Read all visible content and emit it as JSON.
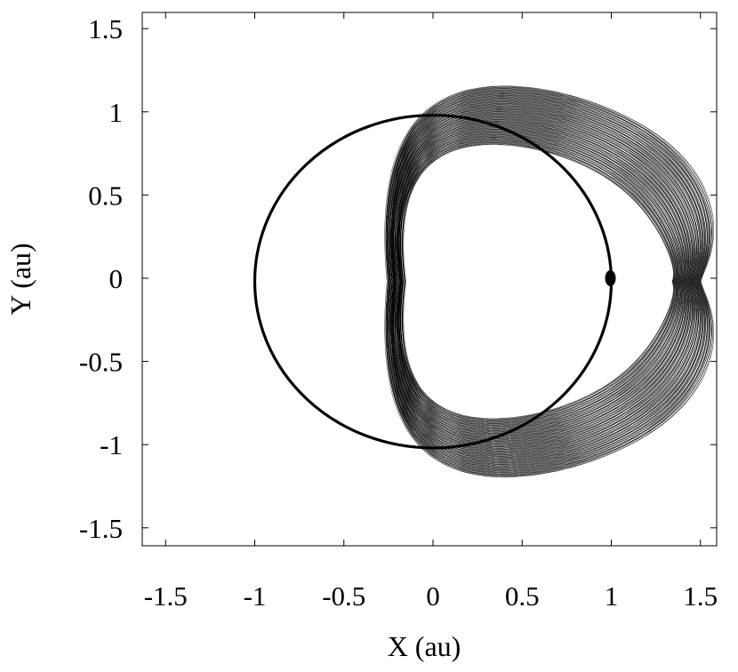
{
  "chart_data": {
    "type": "line",
    "xlabel": "X (au)",
    "ylabel": "Y (au)",
    "xlim": [
      -1.6,
      1.6
    ],
    "ylim": [
      -1.6,
      1.6
    ],
    "xticks": [
      -1.5,
      -1,
      -0.5,
      0,
      0.5,
      1,
      1.5
    ],
    "yticks": [
      -1.5,
      -1,
      -0.5,
      0,
      0.5,
      1,
      1.5
    ],
    "xtick_labels": [
      "-1.5",
      "-1",
      "-0.5",
      "0",
      "0.5",
      "1",
      "1.5"
    ],
    "ytick_labels": [
      "-1.5",
      "-1",
      "-0.5",
      "0",
      "0.5",
      "1",
      "1.5"
    ],
    "grid": false,
    "legend": "none",
    "series": [
      {
        "kind": "circle-orbit",
        "center": [
          0.0,
          -0.02
        ],
        "radius": 1.0,
        "color": "#000000"
      },
      {
        "kind": "horseshoe-trajectory",
        "x_range": [
          -0.09,
          1.42
        ],
        "y_range": [
          -1.28,
          1.27
        ],
        "eye_x_range": [
          0.6,
          1.25
        ],
        "eye_y_range": [
          -0.43,
          0.2
        ],
        "color": "#000000"
      },
      {
        "kind": "point",
        "x": [
          1.0
        ],
        "y": [
          0.0
        ],
        "color": "#000000"
      }
    ]
  }
}
